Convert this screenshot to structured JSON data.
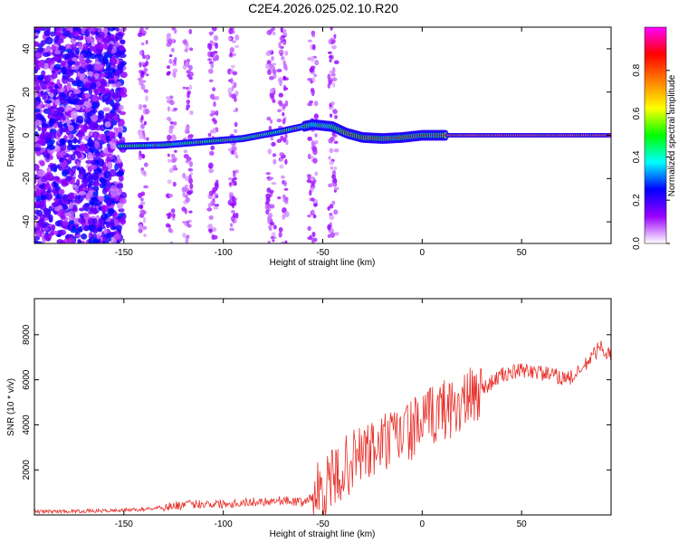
{
  "figure": {
    "title": "C2E4.2026.025.02.10.R20"
  },
  "chart_data": [
    {
      "type": "heatmap",
      "xlabel": "Height of straight line (km)",
      "ylabel": "Frequency (Hz)",
      "xlim": [
        -195,
        95
      ],
      "ylim": [
        -50,
        50
      ],
      "xticks": [
        -150,
        -100,
        -50,
        0,
        50
      ],
      "yticks": [
        -40,
        -20,
        0,
        20,
        40
      ],
      "colorbar": {
        "label": "Normalized spectral amplitude",
        "range": [
          0,
          1
        ],
        "ticks": [
          0.0,
          0.2,
          0.4,
          0.6,
          0.8
        ],
        "tick_labels": [
          "0.0",
          "0.2",
          "0.4",
          "0.6",
          "0.8"
        ],
        "colors": [
          "#ffffff",
          "#9a00ff",
          "#0000ff",
          "#00ffff",
          "#00ff00",
          "#ffff00",
          "#ff8000",
          "#ff0000",
          "#ff00ff"
        ]
      },
      "ridge_frequency_hz": {
        "x": [
          -150,
          -130,
          -110,
          -90,
          -70,
          -55,
          -45,
          -38,
          -30,
          -20,
          -10,
          0,
          10,
          30,
          60,
          95
        ],
        "y": [
          -5,
          -4.5,
          -3,
          -1.5,
          2,
          5,
          4,
          1,
          -1,
          -1.5,
          -1,
          0,
          0,
          0,
          0,
          0
        ]
      }
    },
    {
      "type": "line",
      "xlabel": "Height of straight line (km)",
      "ylabel": "SNR (10 * v/v)",
      "xlim": [
        -195,
        95
      ],
      "ylim": [
        0,
        9600
      ],
      "xticks": [
        -150,
        -100,
        -50,
        0,
        50
      ],
      "yticks": [
        2000,
        4000,
        6000,
        8000
      ],
      "line_color": "#e8302a",
      "series": [
        {
          "x": [
            -195,
            -160,
            -140,
            -130,
            -120,
            -110,
            -100,
            -90,
            -80,
            -70,
            -60,
            -55,
            -50,
            -45,
            -40,
            -35,
            -30,
            -25,
            -20,
            -15,
            -10,
            -5,
            0,
            5,
            10,
            15,
            20,
            25,
            30,
            35,
            40,
            45,
            50,
            55,
            60,
            65,
            70,
            75,
            80,
            85,
            90,
            95
          ],
          "values": [
            150,
            180,
            250,
            350,
            450,
            500,
            500,
            550,
            600,
            650,
            550,
            800,
            1200,
            1500,
            2000,
            2400,
            2800,
            2800,
            3200,
            3300,
            3600,
            3800,
            4000,
            4400,
            4700,
            4800,
            4900,
            5200,
            5600,
            5900,
            6200,
            6300,
            6400,
            6400,
            6300,
            6200,
            6100,
            6100,
            6400,
            7000,
            7500,
            7000
          ]
        }
      ]
    }
  ]
}
